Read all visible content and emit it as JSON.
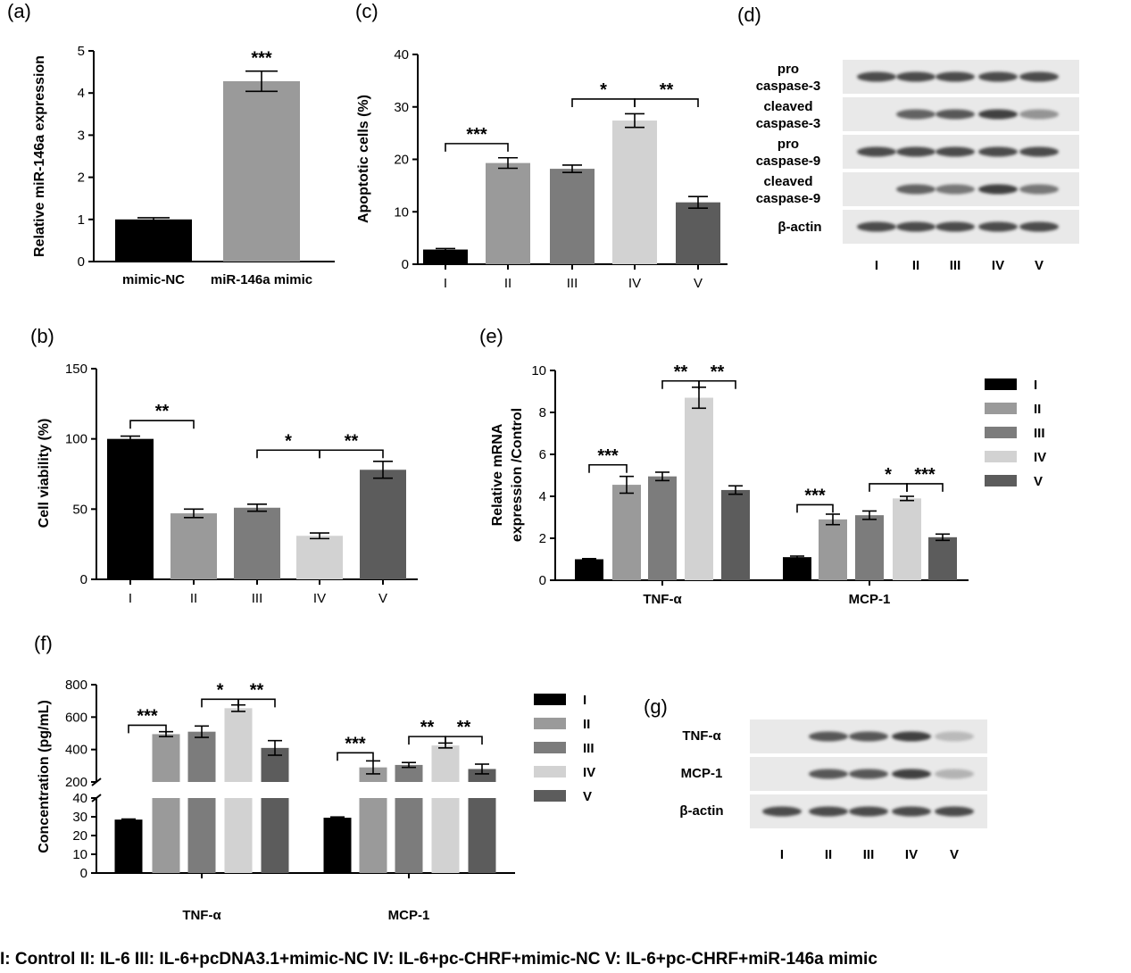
{
  "colors": {
    "I": "#000000",
    "II": "#9a9a9a",
    "III": "#7c7c7c",
    "IV": "#d2d2d2",
    "V": "#5c5c5c"
  },
  "chart_data": [
    {
      "panel": "(a)",
      "type": "bar",
      "ylabel": "Relative miR-146a expression",
      "ylim": [
        0,
        5
      ],
      "yticks": [
        "0",
        "1",
        "2",
        "3",
        "4",
        "5"
      ],
      "categories": [
        "mimic-NC",
        "miR-146a mimic"
      ],
      "values": [
        1.0,
        4.28
      ],
      "errors": [
        0.04,
        0.24
      ],
      "colors": [
        "#000000",
        "#9a9a9a"
      ],
      "annotations": [
        {
          "text": "***",
          "bar": 1
        }
      ]
    },
    {
      "panel": "(b)",
      "type": "bar",
      "ylabel": "Cell viability (%)",
      "ylim": [
        0,
        150
      ],
      "yticks": [
        "0",
        "50",
        "100",
        "150"
      ],
      "categories": [
        "I",
        "II",
        "III",
        "IV",
        "V"
      ],
      "values": [
        100,
        47,
        51,
        31,
        78
      ],
      "errors": [
        2,
        3,
        2.5,
        2,
        6
      ],
      "annotations": [
        {
          "text": "**",
          "from": 0,
          "to": 1,
          "y": 113
        },
        {
          "text": "*",
          "from": 2,
          "to": 3,
          "y": 92
        },
        {
          "text": "**",
          "from": 3,
          "to": 4,
          "y": 92
        }
      ]
    },
    {
      "panel": "(c)",
      "type": "bar",
      "ylabel": "Apoptotic cells (%)",
      "ylim": [
        0,
        40
      ],
      "yticks": [
        "0",
        "10",
        "20",
        "30",
        "40"
      ],
      "categories": [
        "I",
        "II",
        "III",
        "IV",
        "V"
      ],
      "values": [
        2.8,
        19.3,
        18.2,
        27.4,
        11.8
      ],
      "errors": [
        0.2,
        1.0,
        0.7,
        1.3,
        1.1
      ],
      "annotations": [
        {
          "text": "***",
          "from": 0,
          "to": 1,
          "y": 23
        },
        {
          "text": "*",
          "from": 2,
          "to": 3,
          "y": 31.5
        },
        {
          "text": "**",
          "from": 3,
          "to": 4,
          "y": 31.5
        }
      ]
    },
    {
      "panel": "(e)",
      "type": "bar",
      "ylabel": "Relative mRNA expression /Control",
      "ylim": [
        0,
        10
      ],
      "yticks": [
        "0",
        "2",
        "4",
        "6",
        "8",
        "10"
      ],
      "groups": [
        "TNF-α",
        "MCP-1"
      ],
      "series": [
        {
          "name": "I",
          "values": [
            1.0,
            1.1
          ],
          "errors": [
            0.03,
            0.05
          ]
        },
        {
          "name": "II",
          "values": [
            4.55,
            2.9
          ],
          "errors": [
            0.4,
            0.25
          ]
        },
        {
          "name": "III",
          "values": [
            4.95,
            3.1
          ],
          "errors": [
            0.2,
            0.2
          ]
        },
        {
          "name": "IV",
          "values": [
            8.7,
            3.9
          ],
          "errors": [
            0.5,
            0.1
          ]
        },
        {
          "name": "V",
          "values": [
            4.3,
            2.05
          ],
          "errors": [
            0.2,
            0.15
          ]
        }
      ],
      "annotations": [
        {
          "text": "***",
          "group": 0,
          "from": 0,
          "to": 1,
          "y": 5.5
        },
        {
          "text": "**",
          "group": 0,
          "from": 2,
          "to": 3,
          "y": 9.5
        },
        {
          "text": "**",
          "group": 0,
          "from": 3,
          "to": 4,
          "y": 9.5
        },
        {
          "text": "***",
          "group": 1,
          "from": 0,
          "to": 1,
          "y": 3.6
        },
        {
          "text": "*",
          "group": 1,
          "from": 2,
          "to": 3,
          "y": 4.6
        },
        {
          "text": "***",
          "group": 1,
          "from": 3,
          "to": 4,
          "y": 4.6
        }
      ]
    },
    {
      "panel": "(f)",
      "type": "bar",
      "ylabel": "Concentration (pg/mL)",
      "broken_axis": {
        "lower": [
          0,
          40
        ],
        "upper": [
          200,
          800
        ]
      },
      "yticks_lower": [
        "0",
        "10",
        "20",
        "30",
        "40"
      ],
      "yticks_upper": [
        "200",
        "400",
        "600",
        "800"
      ],
      "groups": [
        "TNF-α",
        "MCP-1"
      ],
      "series": [
        {
          "name": "I",
          "values": [
            28.5,
            29.5
          ],
          "errors": [
            0.3,
            0.4
          ]
        },
        {
          "name": "II",
          "values": [
            495,
            290
          ],
          "errors": [
            15,
            40
          ]
        },
        {
          "name": "III",
          "values": [
            510,
            305
          ],
          "errors": [
            35,
            15
          ]
        },
        {
          "name": "IV",
          "values": [
            655,
            425
          ],
          "errors": [
            20,
            15
          ]
        },
        {
          "name": "V",
          "values": [
            410,
            280
          ],
          "errors": [
            45,
            30
          ]
        }
      ],
      "annotations": [
        {
          "text": "***",
          "group": 0,
          "from": 0,
          "to": 1,
          "y": 550
        },
        {
          "text": "*",
          "group": 0,
          "from": 2,
          "to": 3,
          "y": 710
        },
        {
          "text": "**",
          "group": 0,
          "from": 3,
          "to": 4,
          "y": 710
        },
        {
          "text": "***",
          "group": 1,
          "from": 0,
          "to": 1,
          "y": 380
        },
        {
          "text": "**",
          "group": 1,
          "from": 2,
          "to": 3,
          "y": 480
        },
        {
          "text": "**",
          "group": 1,
          "from": 3,
          "to": 4,
          "y": 480
        }
      ]
    }
  ],
  "blots": [
    {
      "panel": "(d)",
      "rows": [
        {
          "label": [
            "pro",
            "caspase-3"
          ],
          "intensity": [
            0.9,
            0.9,
            0.9,
            0.9,
            0.9
          ]
        },
        {
          "label": [
            "cleaved",
            "caspase-3"
          ],
          "intensity": [
            0.0,
            0.8,
            0.85,
            0.95,
            0.55
          ]
        },
        {
          "label": [
            "pro",
            "caspase-9"
          ],
          "intensity": [
            0.9,
            0.9,
            0.9,
            0.9,
            0.9
          ]
        },
        {
          "label": [
            "cleaved",
            "caspase-9"
          ],
          "intensity": [
            0.0,
            0.8,
            0.7,
            0.95,
            0.7
          ]
        },
        {
          "label": [
            "β-actin"
          ],
          "intensity": [
            0.9,
            0.9,
            0.9,
            0.9,
            0.9
          ]
        }
      ],
      "lanes": [
        "I",
        "II",
        "III",
        "IV",
        "V"
      ]
    },
    {
      "panel": "(g)",
      "rows": [
        {
          "label": [
            "TNF-α"
          ],
          "intensity": [
            0.0,
            0.85,
            0.85,
            0.95,
            0.3
          ]
        },
        {
          "label": [
            "MCP-1"
          ],
          "intensity": [
            0.0,
            0.85,
            0.85,
            0.95,
            0.35
          ]
        },
        {
          "label": [
            "β-actin"
          ],
          "intensity": [
            0.9,
            0.9,
            0.9,
            0.9,
            0.9
          ]
        }
      ],
      "lanes": [
        "I",
        "II",
        "III",
        "IV",
        "V"
      ]
    }
  ],
  "footer": "I: Control    II: IL-6    III: IL-6+pcDNA3.1+mimic-NC    IV: IL-6+pc-CHRF+mimic-NC    V: IL-6+pc-CHRF+miR-146a mimic"
}
